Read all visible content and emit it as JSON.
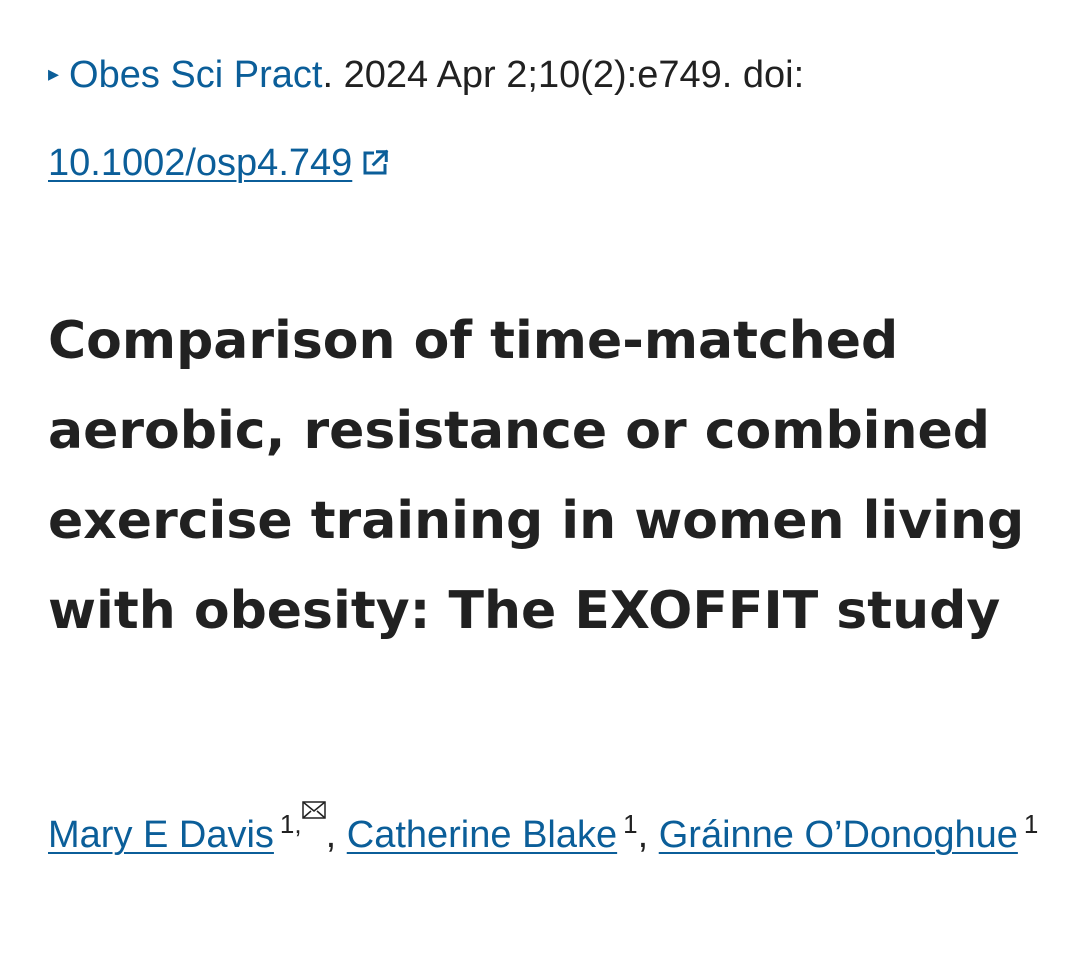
{
  "citation": {
    "journal": "Obes Sci Pract",
    "details": ". 2024 Apr 2;10(2):e749. doi:",
    "doi": "10.1002/osp4.749"
  },
  "article": {
    "title": "Comparison of time-matched aerobic, resistance or combined exercise training in women living with obesity: The EXOFFIT study"
  },
  "authors": [
    {
      "name": "Mary E Davis",
      "affiliation": "1",
      "corresponding": true
    },
    {
      "name": "Catherine Blake",
      "affiliation": "1"
    },
    {
      "name": "Gráinne O’Donoghue",
      "affiliation": "1"
    }
  ],
  "separators": {
    "comma": ",",
    "space": " "
  },
  "icons": {
    "expand": "triangle-right-icon",
    "external_link": "external-link-icon",
    "email": "envelope-icon"
  },
  "colors": {
    "link": "#0b5e99",
    "text": "#212121"
  }
}
